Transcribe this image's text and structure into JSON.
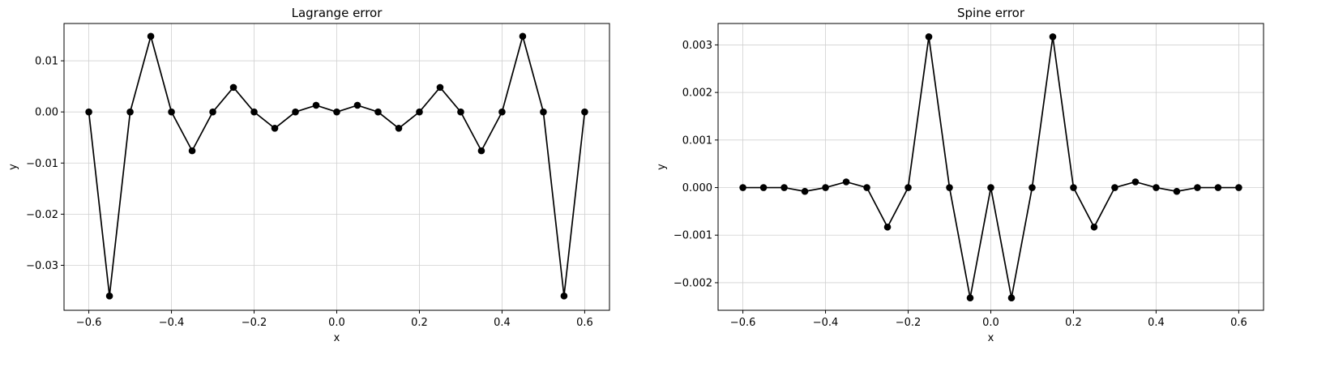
{
  "chart_data": [
    {
      "type": "line",
      "title": "Lagrange error",
      "xlabel": "x",
      "ylabel": "y",
      "xlim": [
        -0.66,
        0.66
      ],
      "ylim": [
        -0.0388,
        0.0173
      ],
      "xticks": [
        -0.6,
        -0.4,
        -0.2,
        0.0,
        0.2,
        0.4,
        0.6
      ],
      "xtick_labels": [
        "−0.6",
        "−0.4",
        "−0.2",
        "0.0",
        "0.2",
        "0.4",
        "0.6"
      ],
      "yticks": [
        -0.03,
        -0.02,
        -0.01,
        0.0,
        0.01
      ],
      "ytick_labels": [
        "−0.03",
        "−0.02",
        "−0.01",
        "0.00",
        "0.01"
      ],
      "grid": true,
      "marker": "circle",
      "color": "#000000",
      "x": [
        -0.6,
        -0.55,
        -0.5,
        -0.45,
        -0.4,
        -0.35,
        -0.3,
        -0.25,
        -0.2,
        -0.15,
        -0.1,
        -0.05,
        0.0,
        0.05,
        0.1,
        0.15,
        0.2,
        0.25,
        0.3,
        0.35,
        0.4,
        0.45,
        0.5,
        0.55,
        0.6
      ],
      "y": [
        0.0,
        -0.036,
        0.0,
        0.0148,
        0.0,
        -0.0076,
        0.0,
        0.0048,
        0.0,
        -0.0032,
        0.0,
        0.0013,
        0.0,
        0.0013,
        0.0,
        -0.0032,
        0.0,
        0.0048,
        0.0,
        -0.0076,
        0.0,
        0.0148,
        0.0,
        -0.036,
        0.0
      ]
    },
    {
      "type": "line",
      "title": "Spine error",
      "xlabel": "x",
      "ylabel": "y",
      "xlim": [
        -0.66,
        0.66
      ],
      "ylim": [
        -0.00258,
        0.00345
      ],
      "xticks": [
        -0.6,
        -0.4,
        -0.2,
        0.0,
        0.2,
        0.4,
        0.6
      ],
      "xtick_labels": [
        "−0.6",
        "−0.4",
        "−0.2",
        "0.0",
        "0.2",
        "0.4",
        "0.6"
      ],
      "yticks": [
        -0.002,
        -0.001,
        0.0,
        0.001,
        0.002,
        0.003
      ],
      "ytick_labels": [
        "−0.002",
        "−0.001",
        "0.000",
        "0.001",
        "0.002",
        "0.003"
      ],
      "grid": true,
      "marker": "circle",
      "color": "#000000",
      "x": [
        -0.6,
        -0.55,
        -0.5,
        -0.45,
        -0.4,
        -0.35,
        -0.3,
        -0.25,
        -0.2,
        -0.15,
        -0.1,
        -0.05,
        0.0,
        0.05,
        0.1,
        0.15,
        0.2,
        0.25,
        0.3,
        0.35,
        0.4,
        0.45,
        0.5,
        0.55,
        0.6
      ],
      "y": [
        0.0,
        0.0,
        0.0,
        -8e-05,
        0.0,
        0.00012,
        0.0,
        -0.00083,
        0.0,
        0.00317,
        0.0,
        -0.00232,
        0.0,
        -0.00232,
        0.0,
        0.00317,
        0.0,
        -0.00083,
        0.0,
        0.00012,
        0.0,
        -8e-05,
        0.0,
        0.0,
        0.0
      ]
    }
  ]
}
